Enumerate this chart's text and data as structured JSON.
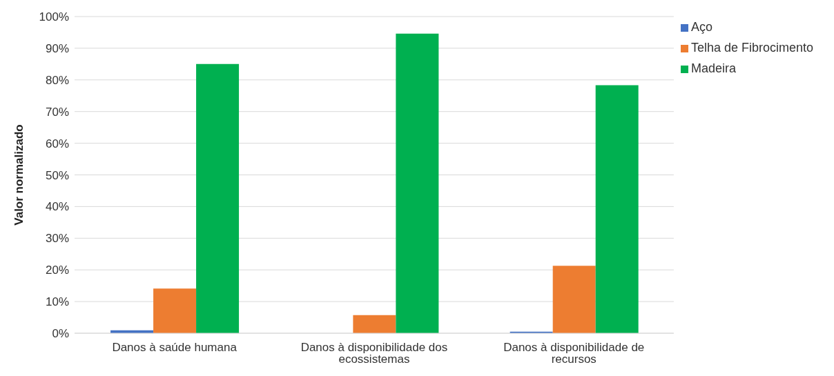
{
  "chart_data": {
    "type": "bar",
    "ylabel": "Valor normalizado",
    "categories": [
      "Danos à saúde humana",
      "Danos à disponibilidade dos ecossistemas",
      "Danos à disponibilidade de recursos"
    ],
    "series": [
      {
        "name": "Aço",
        "color": "#4472c4",
        "values": [
          0.9,
          0,
          0.5
        ]
      },
      {
        "name": "Telha de Fibrocimento",
        "color": "#ed7d31",
        "values": [
          14.1,
          5.7,
          21.3
        ]
      },
      {
        "name": "Madeira",
        "color": "#00b050",
        "values": [
          85,
          94.6,
          78.3
        ]
      }
    ],
    "ylim": [
      0,
      100
    ],
    "yticks": [
      {
        "value": 0,
        "label": "0%"
      },
      {
        "value": 10,
        "label": "10%"
      },
      {
        "value": 20,
        "label": "20%"
      },
      {
        "value": 30,
        "label": "30%"
      },
      {
        "value": 40,
        "label": "40%"
      },
      {
        "value": 50,
        "label": "50%"
      },
      {
        "value": 60,
        "label": "60%"
      },
      {
        "value": 70,
        "label": "70%"
      },
      {
        "value": 80,
        "label": "80%"
      },
      {
        "value": 90,
        "label": "90%"
      },
      {
        "value": 100,
        "label": "100%"
      }
    ],
    "grid": "y",
    "legend": "top right"
  }
}
